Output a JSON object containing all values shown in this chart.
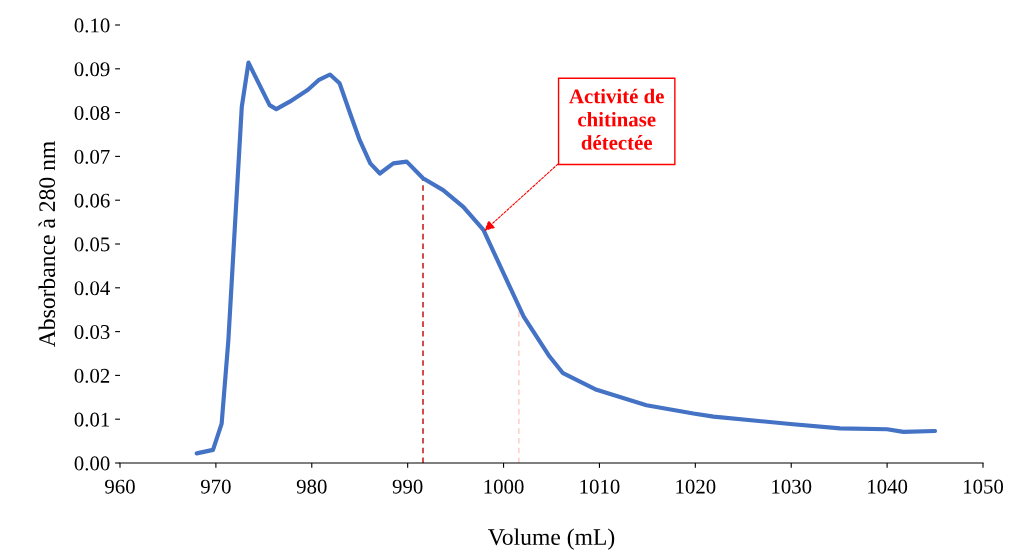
{
  "chart_data": {
    "type": "line",
    "xlabel": "Volume (mL)",
    "ylabel": "Absorbance à 280 nm",
    "xlim": [
      960,
      1050
    ],
    "xticks": [
      960,
      970,
      980,
      990,
      1000,
      1010,
      1020,
      1030,
      1040,
      1050
    ],
    "ylim": [
      0,
      0.1
    ],
    "yticks": [
      {
        "value": 0,
        "label": "0.00"
      },
      {
        "value": 0.01,
        "label": "0.01"
      },
      {
        "value": 0.02,
        "label": "0.02"
      },
      {
        "value": 0.03,
        "label": "0.03"
      },
      {
        "value": 0.04,
        "label": "0.04"
      },
      {
        "value": 0.05,
        "label": "0.05"
      },
      {
        "value": 0.06,
        "label": "0.06"
      },
      {
        "value": 0.07,
        "label": "0.07"
      },
      {
        "value": 0.08,
        "label": "0.08"
      },
      {
        "value": 0.09,
        "label": "0.09"
      },
      {
        "value": 0.1,
        "label": "0.10"
      }
    ],
    "grid": false,
    "legend": false,
    "marker": "none",
    "line_style": "solid",
    "series": [
      {
        "color": "#4472c4",
        "x": [
          968.0,
          969.7,
          970.6,
          971.3,
          972.0,
          972.7,
          973.4,
          974.3,
          975.6,
          976.3,
          977.7,
          979.6,
          980.7,
          981.9,
          982.9,
          984.0,
          985.0,
          986.1,
          987.1,
          988.5,
          989.9,
          991.6,
          993.7,
          995.8,
          997.9,
          1000.0,
          1002.1,
          1004.8,
          1006.2,
          1009.7,
          1014.9,
          1019.8,
          1021.9,
          1029.9,
          1035.1,
          1040.0,
          1041.7,
          1045.0
        ],
        "values": [
          0.0022,
          0.003,
          0.009,
          0.028,
          0.0547,
          0.0813,
          0.0914,
          0.0874,
          0.0817,
          0.0808,
          0.0825,
          0.0852,
          0.0874,
          0.0887,
          0.0867,
          0.0798,
          0.0737,
          0.0684,
          0.0661,
          0.0684,
          0.0688,
          0.065,
          0.0623,
          0.0585,
          0.0532,
          0.0433,
          0.0334,
          0.0243,
          0.0205,
          0.0167,
          0.0132,
          0.0113,
          0.0106,
          0.0089,
          0.0079,
          0.0077,
          0.0071,
          0.0073
        ]
      }
    ],
    "ref_lines": [
      {
        "axis": "x",
        "value": 991.6,
        "color": "#c00000",
        "line_style": "dashed"
      },
      {
        "axis": "x",
        "value": 1001.6,
        "color": "#ffc7c7",
        "line_style": "dashed"
      }
    ],
    "annotations": [
      {
        "text": "Activité de\nchitinase\ndétectée",
        "x": 998.0,
        "y": 0.053
      }
    ]
  }
}
